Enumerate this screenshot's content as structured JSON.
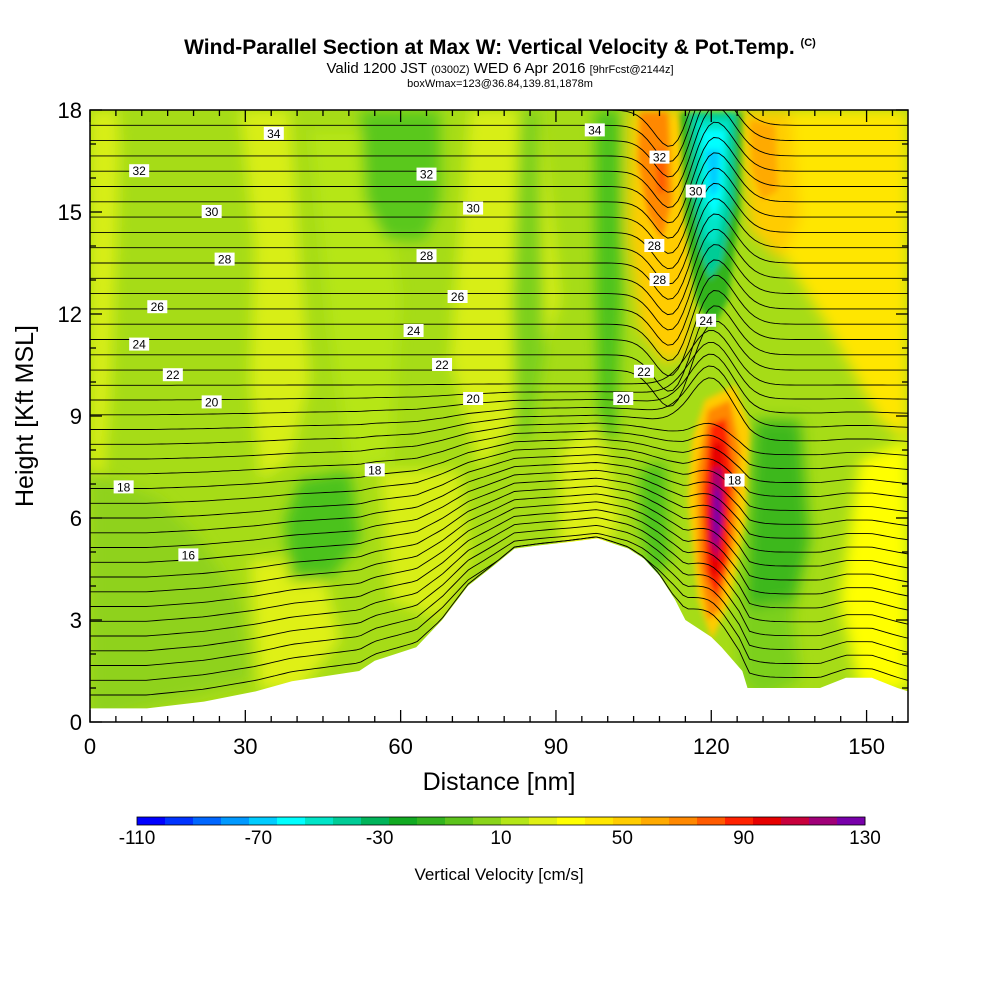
{
  "title": "Wind-Parallel Section at Max W: Vertical Velocity & Pot.Temp.",
  "title_mark": "(C)",
  "subtitle_a": "Valid 1200 JST",
  "subtitle_b": "(0300Z)",
  "subtitle_c": "WED 6 Apr 2016",
  "subtitle_d": "[9hrFcst@2144z]",
  "subtitle_line2": "boxWmax=123@36.84,139.81,1878m",
  "chart_data": {
    "type": "heatmap",
    "xlabel": "Distance [nm]",
    "ylabel": "Height [Kft MSL]",
    "xlim": [
      0,
      158
    ],
    "ylim": [
      0,
      18
    ],
    "x_ticks": [
      0,
      30,
      60,
      90,
      120,
      150
    ],
    "y_ticks": [
      0,
      3,
      6,
      9,
      12,
      15,
      18
    ],
    "colorbar": {
      "title": "Vertical Velocity [cm/s]",
      "tick_labels": [
        "-110",
        "-70",
        "-30",
        "10",
        "50",
        "90",
        "130"
      ],
      "tick_values": [
        -110,
        -70,
        -30,
        10,
        50,
        90,
        130
      ],
      "range": [
        -110,
        130
      ],
      "step": 10,
      "colors": [
        "#0000ff",
        "#0033ff",
        "#0066ff",
        "#0099ff",
        "#00ccff",
        "#00ffff",
        "#00e5c8",
        "#00cc96",
        "#00b45a",
        "#11aa22",
        "#33b41e",
        "#5cc31c",
        "#8ad41a",
        "#b4e617",
        "#dff014",
        "#ffff00",
        "#ffe600",
        "#ffcc00",
        "#ffaa00",
        "#ff8800",
        "#ff5a00",
        "#ff2200",
        "#e60000",
        "#c8003c",
        "#a00078",
        "#7800aa"
      ]
    },
    "contours": {
      "variable": "Potential Temperature",
      "labels": [
        {
          "text": "34",
          "x": 35.5,
          "y": 17.3
        },
        {
          "text": "34",
          "x": 97.5,
          "y": 17.4
        },
        {
          "text": "32",
          "x": 9.5,
          "y": 16.2
        },
        {
          "text": "32",
          "x": 65,
          "y": 16.1
        },
        {
          "text": "32",
          "x": 110,
          "y": 16.6
        },
        {
          "text": "30",
          "x": 23.5,
          "y": 15.0
        },
        {
          "text": "30",
          "x": 74,
          "y": 15.1
        },
        {
          "text": "30",
          "x": 117,
          "y": 15.6
        },
        {
          "text": "28",
          "x": 26,
          "y": 13.6
        },
        {
          "text": "28",
          "x": 65,
          "y": 13.7
        },
        {
          "text": "28",
          "x": 109,
          "y": 14.0
        },
        {
          "text": "28",
          "x": 110,
          "y": 13.0
        },
        {
          "text": "26",
          "x": 13,
          "y": 12.2
        },
        {
          "text": "26",
          "x": 71,
          "y": 12.5
        },
        {
          "text": "24",
          "x": 9.5,
          "y": 11.1
        },
        {
          "text": "24",
          "x": 62.5,
          "y": 11.5
        },
        {
          "text": "24",
          "x": 119,
          "y": 11.8
        },
        {
          "text": "22",
          "x": 16,
          "y": 10.2
        },
        {
          "text": "22",
          "x": 68,
          "y": 10.5
        },
        {
          "text": "22",
          "x": 107,
          "y": 10.3
        },
        {
          "text": "20",
          "x": 23.5,
          "y": 9.4
        },
        {
          "text": "20",
          "x": 74,
          "y": 9.5
        },
        {
          "text": "20",
          "x": 103,
          "y": 9.5
        },
        {
          "text": "18",
          "x": 6.5,
          "y": 6.9
        },
        {
          "text": "18",
          "x": 55,
          "y": 7.4
        },
        {
          "text": "18",
          "x": 124.5,
          "y": 7.1
        },
        {
          "text": "16",
          "x": 19,
          "y": 4.9
        }
      ]
    },
    "peak_updraft": {
      "x": 120,
      "y": 6.0,
      "value": 123
    },
    "terrain": [
      [
        0,
        0.4
      ],
      [
        11,
        0.4
      ],
      [
        22,
        0.6
      ],
      [
        32,
        0.9
      ],
      [
        39,
        1.2
      ],
      [
        52,
        1.5
      ],
      [
        55,
        1.8
      ],
      [
        63,
        2.2
      ],
      [
        68,
        3.0
      ],
      [
        73,
        4.0
      ],
      [
        78,
        4.6
      ],
      [
        82,
        5.1
      ],
      [
        87,
        5.2
      ],
      [
        93,
        5.3
      ],
      [
        98,
        5.4
      ],
      [
        104,
        5.1
      ],
      [
        107,
        4.8
      ],
      [
        110,
        4.3
      ],
      [
        113,
        3.6
      ],
      [
        115,
        3.0
      ],
      [
        117,
        2.8
      ],
      [
        120,
        2.5
      ],
      [
        122,
        2.2
      ],
      [
        126,
        1.5
      ],
      [
        127,
        1.0
      ],
      [
        141,
        1.0
      ],
      [
        146,
        1.3
      ],
      [
        151,
        1.3
      ],
      [
        156,
        1.0
      ],
      [
        158,
        0.9
      ]
    ]
  }
}
